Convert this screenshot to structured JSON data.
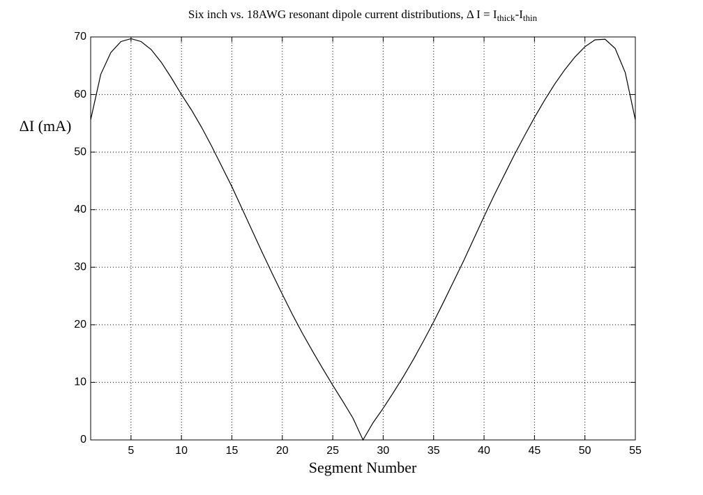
{
  "chart_data": {
    "type": "line",
    "title": [
      "Six inch vs. 18AWG resonant dipole current distributions, Δ I = I",
      "thick",
      "-I",
      "thin"
    ],
    "xlabel": "Segment Number",
    "ylabel": "ΔI (mA)",
    "x": [
      1,
      2,
      3,
      4,
      5,
      6,
      7,
      8,
      9,
      10,
      11,
      12,
      13,
      14,
      15,
      16,
      17,
      18,
      19,
      20,
      21,
      22,
      23,
      24,
      25,
      26,
      27,
      28,
      29,
      30,
      31,
      32,
      33,
      34,
      35,
      36,
      37,
      38,
      39,
      40,
      41,
      42,
      43,
      44,
      45,
      46,
      47,
      48,
      49,
      50,
      51,
      52,
      53,
      54,
      55
    ],
    "values": [
      55.6,
      63.5,
      67.3,
      69.2,
      69.7,
      69.2,
      67.8,
      65.6,
      62.9,
      60,
      57.3,
      54.3,
      51,
      47.5,
      44,
      40.2,
      36.4,
      32.6,
      28.9,
      25.3,
      21.8,
      18.5,
      15.4,
      12.4,
      9.5,
      6.7,
      3.8,
      0,
      3,
      5.5,
      8.2,
      11,
      14,
      17.2,
      20.5,
      24,
      27.6,
      31.2,
      35,
      38.8,
      42.5,
      46,
      49.5,
      52.8,
      56,
      59,
      61.8,
      64.3,
      66.5,
      68.3,
      69.5,
      69.6,
      68,
      63.8,
      55.6
    ],
    "color": "#000000",
    "xlim": [
      1,
      55
    ],
    "xticks": [
      5,
      10,
      15,
      20,
      25,
      30,
      35,
      40,
      45,
      50,
      55
    ],
    "ylim": [
      0,
      70
    ],
    "yticks": [
      0,
      10,
      20,
      30,
      40,
      50,
      60,
      70
    ],
    "grid": true
  }
}
